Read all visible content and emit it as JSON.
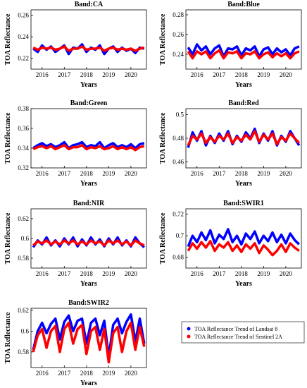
{
  "chart_data": [
    {
      "type": "line",
      "title": "Band:CA",
      "x_label": "Years",
      "y_label": "TOA Reflectance",
      "x": [
        2015.6,
        2015.8,
        2016,
        2016.2,
        2016.4,
        2016.6,
        2016.8,
        2017,
        2017.2,
        2017.4,
        2017.6,
        2017.8,
        2018,
        2018.2,
        2018.4,
        2018.6,
        2018.8,
        2019,
        2019.2,
        2019.4,
        2019.6,
        2019.8,
        2020,
        2020.2,
        2020.4,
        2020.6
      ],
      "xlim": [
        2015.5,
        2020.7
      ],
      "xticks": [
        2016,
        2017,
        2018,
        2019,
        2020
      ],
      "ylim": [
        0.21,
        0.265
      ],
      "yticks": [
        0.22,
        0.24,
        0.26
      ],
      "series": [
        {
          "name": "TOA Reflectance Trend of Landsat 8",
          "color": "#0000ff",
          "values": [
            0.229,
            0.226,
            0.232,
            0.228,
            0.231,
            0.226,
            0.229,
            0.232,
            0.224,
            0.23,
            0.229,
            0.233,
            0.226,
            0.23,
            0.228,
            0.232,
            0.224,
            0.229,
            0.231,
            0.226,
            0.23,
            0.227,
            0.229,
            0.225,
            0.23,
            0.229
          ]
        },
        {
          "name": "TOA Reflectance Trend of Sentinel 2A",
          "color": "#ff0000",
          "values": [
            0.23,
            0.228,
            0.23,
            0.229,
            0.23,
            0.228,
            0.229,
            0.231,
            0.227,
            0.229,
            0.229,
            0.231,
            0.228,
            0.229,
            0.229,
            0.23,
            0.227,
            0.229,
            0.23,
            0.228,
            0.229,
            0.228,
            0.229,
            0.227,
            0.229,
            0.23
          ]
        }
      ]
    },
    {
      "type": "line",
      "title": "Band:Blue",
      "x_label": "Years",
      "y_label": "TOA Reflectance",
      "x": [
        2015.6,
        2015.8,
        2016,
        2016.2,
        2016.4,
        2016.6,
        2016.8,
        2017,
        2017.2,
        2017.4,
        2017.6,
        2017.8,
        2018,
        2018.2,
        2018.4,
        2018.6,
        2018.8,
        2019,
        2019.2,
        2019.4,
        2019.6,
        2019.8,
        2020,
        2020.2,
        2020.4,
        2020.6
      ],
      "xlim": [
        2015.5,
        2020.7
      ],
      "xticks": [
        2016,
        2017,
        2018,
        2019,
        2020
      ],
      "ylim": [
        0.225,
        0.285
      ],
      "yticks": [
        0.24,
        0.26,
        0.28
      ],
      "series": [
        {
          "name": "TOA Reflectance Trend of Landsat 8",
          "color": "#0000ff",
          "values": [
            0.247,
            0.24,
            0.25,
            0.244,
            0.248,
            0.24,
            0.246,
            0.249,
            0.238,
            0.246,
            0.245,
            0.248,
            0.239,
            0.246,
            0.244,
            0.248,
            0.238,
            0.245,
            0.247,
            0.24,
            0.246,
            0.242,
            0.245,
            0.239,
            0.246,
            0.248
          ]
        },
        {
          "name": "TOA Reflectance Trend of Sentinel 2A",
          "color": "#ff0000",
          "values": [
            0.243,
            0.236,
            0.243,
            0.24,
            0.243,
            0.236,
            0.241,
            0.244,
            0.236,
            0.242,
            0.241,
            0.243,
            0.236,
            0.241,
            0.24,
            0.243,
            0.236,
            0.24,
            0.242,
            0.237,
            0.241,
            0.238,
            0.241,
            0.236,
            0.241,
            0.243
          ]
        }
      ]
    },
    {
      "type": "line",
      "title": "Band:Green",
      "x_label": "Years",
      "y_label": "TOA Reflectance",
      "x": [
        2015.6,
        2015.8,
        2016,
        2016.2,
        2016.4,
        2016.6,
        2016.8,
        2017,
        2017.2,
        2017.4,
        2017.6,
        2017.8,
        2018,
        2018.2,
        2018.4,
        2018.6,
        2018.8,
        2019,
        2019.2,
        2019.4,
        2019.6,
        2019.8,
        2020,
        2020.2,
        2020.4,
        2020.6
      ],
      "xlim": [
        2015.5,
        2020.7
      ],
      "xticks": [
        2016,
        2017,
        2018,
        2019,
        2020
      ],
      "ylim": [
        0.32,
        0.38
      ],
      "yticks": [
        0.32,
        0.34,
        0.36,
        0.38
      ],
      "series": [
        {
          "name": "TOA Reflectance Trend of Landsat 8",
          "color": "#0000ff",
          "values": [
            0.34,
            0.343,
            0.345,
            0.342,
            0.344,
            0.341,
            0.343,
            0.346,
            0.34,
            0.343,
            0.344,
            0.346,
            0.341,
            0.343,
            0.342,
            0.346,
            0.34,
            0.343,
            0.345,
            0.341,
            0.343,
            0.341,
            0.344,
            0.34,
            0.344,
            0.345
          ]
        },
        {
          "name": "TOA Reflectance Trend of Sentinel 2A",
          "color": "#ff0000",
          "values": [
            0.339,
            0.341,
            0.342,
            0.34,
            0.342,
            0.339,
            0.341,
            0.343,
            0.339,
            0.341,
            0.341,
            0.343,
            0.339,
            0.341,
            0.34,
            0.342,
            0.339,
            0.34,
            0.342,
            0.339,
            0.341,
            0.339,
            0.341,
            0.338,
            0.341,
            0.342
          ]
        }
      ]
    },
    {
      "type": "line",
      "title": "Band:Red",
      "x_label": "Years",
      "y_label": "TOA Reflectance",
      "x": [
        2015.6,
        2015.8,
        2016,
        2016.2,
        2016.4,
        2016.6,
        2016.8,
        2017,
        2017.2,
        2017.4,
        2017.6,
        2017.8,
        2018,
        2018.2,
        2018.4,
        2018.6,
        2018.8,
        2019,
        2019.2,
        2019.4,
        2019.6,
        2019.8,
        2020,
        2020.2,
        2020.4,
        2020.6
      ],
      "xlim": [
        2015.5,
        2020.7
      ],
      "xticks": [
        2016,
        2017,
        2018,
        2019,
        2020
      ],
      "ylim": [
        0.455,
        0.505
      ],
      "yticks": [
        0.46,
        0.48,
        0.5
      ],
      "series": [
        {
          "name": "TOA Reflectance Trend of Landsat 8",
          "color": "#0000ff",
          "values": [
            0.472,
            0.485,
            0.478,
            0.486,
            0.474,
            0.482,
            0.476,
            0.484,
            0.478,
            0.486,
            0.475,
            0.482,
            0.477,
            0.485,
            0.48,
            0.488,
            0.476,
            0.484,
            0.478,
            0.486,
            0.474,
            0.482,
            0.477,
            0.486,
            0.48,
            0.474
          ]
        },
        {
          "name": "TOA Reflectance Trend of Sentinel 2A",
          "color": "#ff0000",
          "values": [
            0.474,
            0.482,
            0.479,
            0.484,
            0.476,
            0.481,
            0.477,
            0.482,
            0.479,
            0.484,
            0.476,
            0.481,
            0.478,
            0.483,
            0.479,
            0.486,
            0.477,
            0.483,
            0.479,
            0.484,
            0.475,
            0.481,
            0.478,
            0.484,
            0.48,
            0.476
          ]
        }
      ]
    },
    {
      "type": "line",
      "title": "Band:NIR",
      "x_label": "Years",
      "y_label": "TOA Reflectance",
      "x": [
        2015.6,
        2015.8,
        2016,
        2016.2,
        2016.4,
        2016.6,
        2016.8,
        2017,
        2017.2,
        2017.4,
        2017.6,
        2017.8,
        2018,
        2018.2,
        2018.4,
        2018.6,
        2018.8,
        2019,
        2019.2,
        2019.4,
        2019.6,
        2019.8,
        2020,
        2020.2,
        2020.4,
        2020.6
      ],
      "xlim": [
        2015.5,
        2020.7
      ],
      "xticks": [
        2016,
        2017,
        2018,
        2019,
        2020
      ],
      "ylim": [
        0.57,
        0.63
      ],
      "yticks": [
        0.58,
        0.6,
        0.62
      ],
      "series": [
        {
          "name": "TOA Reflectance Trend of Landsat 8",
          "color": "#0000ff",
          "values": [
            0.591,
            0.598,
            0.594,
            0.601,
            0.593,
            0.598,
            0.592,
            0.6,
            0.594,
            0.601,
            0.592,
            0.599,
            0.593,
            0.601,
            0.594,
            0.599,
            0.592,
            0.6,
            0.594,
            0.601,
            0.593,
            0.598,
            0.592,
            0.601,
            0.595,
            0.591
          ]
        },
        {
          "name": "TOA Reflectance Trend of Sentinel 2A",
          "color": "#ff0000",
          "values": [
            0.593,
            0.597,
            0.595,
            0.598,
            0.594,
            0.597,
            0.594,
            0.598,
            0.595,
            0.598,
            0.594,
            0.597,
            0.594,
            0.598,
            0.595,
            0.597,
            0.593,
            0.598,
            0.595,
            0.598,
            0.594,
            0.597,
            0.593,
            0.598,
            0.595,
            0.593
          ]
        }
      ]
    },
    {
      "type": "line",
      "title": "Band:SWIR1",
      "x_label": "Years",
      "y_label": "TOA Reflectance",
      "x": [
        2015.6,
        2015.8,
        2016,
        2016.2,
        2016.4,
        2016.6,
        2016.8,
        2017,
        2017.2,
        2017.4,
        2017.6,
        2017.8,
        2018,
        2018.2,
        2018.4,
        2018.6,
        2018.8,
        2019,
        2019.2,
        2019.4,
        2019.6,
        2019.8,
        2020,
        2020.2,
        2020.4,
        2020.6
      ],
      "xlim": [
        2015.5,
        2020.7
      ],
      "xticks": [
        2016,
        2017,
        2018,
        2019,
        2020
      ],
      "ylim": [
        0.67,
        0.725
      ],
      "yticks": [
        0.68,
        0.7,
        0.72
      ],
      "series": [
        {
          "name": "TOA Reflectance Trend of Landsat 8",
          "color": "#0000ff",
          "values": [
            0.69,
            0.7,
            0.694,
            0.703,
            0.696,
            0.705,
            0.693,
            0.701,
            0.697,
            0.706,
            0.694,
            0.7,
            0.692,
            0.702,
            0.697,
            0.704,
            0.693,
            0.7,
            0.695,
            0.703,
            0.694,
            0.701,
            0.693,
            0.702,
            0.696,
            0.692
          ]
        },
        {
          "name": "TOA Reflectance Trend of Sentinel 2A",
          "color": "#ff0000",
          "values": [
            0.686,
            0.693,
            0.688,
            0.694,
            0.689,
            0.695,
            0.686,
            0.692,
            0.689,
            0.694,
            0.686,
            0.691,
            0.685,
            0.692,
            0.688,
            0.693,
            0.684,
            0.691,
            0.687,
            0.682,
            0.686,
            0.692,
            0.685,
            0.693,
            0.689,
            0.686
          ]
        }
      ]
    },
    {
      "type": "line",
      "title": "Band:SWIR2",
      "x_label": "Years",
      "y_label": "TOA Reflectance",
      "x": [
        2015.6,
        2015.8,
        2016,
        2016.2,
        2016.4,
        2016.6,
        2016.8,
        2017,
        2017.2,
        2017.4,
        2017.6,
        2017.8,
        2018,
        2018.2,
        2018.4,
        2018.6,
        2018.8,
        2019,
        2019.2,
        2019.4,
        2019.6,
        2019.8,
        2020,
        2020.2,
        2020.4,
        2020.6
      ],
      "xlim": [
        2015.5,
        2020.7
      ],
      "xticks": [
        2016,
        2017,
        2018,
        2019,
        2020
      ],
      "ylim": [
        0.565,
        0.622
      ],
      "yticks": [
        0.58,
        0.6,
        0.62
      ],
      "series": [
        {
          "name": "TOA Reflectance Trend of Landsat 8",
          "color": "#0000ff",
          "values": [
            0.582,
            0.6,
            0.608,
            0.598,
            0.607,
            0.612,
            0.592,
            0.609,
            0.615,
            0.6,
            0.61,
            0.612,
            0.588,
            0.608,
            0.612,
            0.596,
            0.61,
            0.575,
            0.606,
            0.612,
            0.598,
            0.609,
            0.616,
            0.59,
            0.612,
            0.588
          ]
        },
        {
          "name": "TOA Reflectance Trend of Sentinel 2A",
          "color": "#ff0000",
          "values": [
            0.58,
            0.596,
            0.602,
            0.584,
            0.6,
            0.605,
            0.58,
            0.602,
            0.608,
            0.588,
            0.602,
            0.606,
            0.578,
            0.6,
            0.604,
            0.582,
            0.602,
            0.57,
            0.598,
            0.604,
            0.58,
            0.6,
            0.608,
            0.582,
            0.604,
            0.585
          ]
        }
      ]
    }
  ]
}
